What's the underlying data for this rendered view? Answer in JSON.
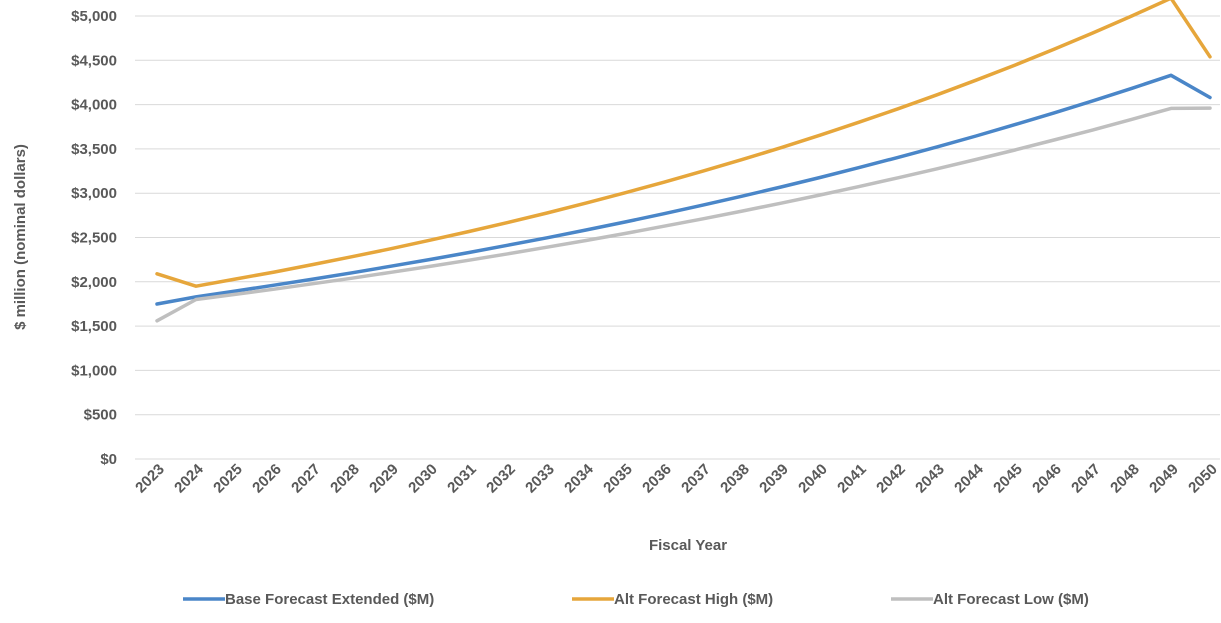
{
  "chart_data": {
    "type": "line",
    "title": "",
    "xlabel": "Fiscal Year",
    "ylabel": "$ million (nominal dollars)",
    "ylim": [
      0,
      5000
    ],
    "yticks": [
      0,
      500,
      1000,
      1500,
      2000,
      2500,
      3000,
      3500,
      4000,
      4500,
      5000
    ],
    "ytick_labels": [
      "$0",
      "$500",
      "$1,000",
      "$1,500",
      "$2,000",
      "$2,500",
      "$3,000",
      "$3,500",
      "$4,000",
      "$4,500",
      "$5,000"
    ],
    "grid": true,
    "legend_position": "bottom",
    "x": [
      "2023",
      "2024",
      "2025",
      "2026",
      "2027",
      "2028",
      "2029",
      "2030",
      "2031",
      "2032",
      "2033",
      "2034",
      "2035",
      "2036",
      "2037",
      "2038",
      "2039",
      "2040",
      "2041",
      "2042",
      "2043",
      "2044",
      "2045",
      "2046",
      "2047",
      "2048",
      "2049",
      "2050"
    ],
    "series": [
      {
        "name": "Base Forecast Extended ($M)",
        "color": "#4a86c8",
        "values": [
          1750,
          1830,
          1895,
          1962,
          2031,
          2102,
          2176,
          2252,
          2331,
          2413,
          2497,
          2585,
          2675,
          2769,
          2866,
          2966,
          3070,
          3177,
          3289,
          3404,
          3523,
          3646,
          3774,
          3906,
          4043,
          4184,
          4331,
          4080
        ]
      },
      {
        "name": "Alt Forecast High ($M)",
        "color": "#e6a63b",
        "values": [
          2090,
          1950,
          2030,
          2110,
          2195,
          2283,
          2374,
          2469,
          2568,
          2670,
          2777,
          2888,
          3004,
          3124,
          3249,
          3379,
          3514,
          3655,
          3801,
          3953,
          4111,
          4275,
          4446,
          4624,
          4809,
          5001,
          5201,
          4540
        ]
      },
      {
        "name": "Alt Forecast Low ($M)",
        "color": "#bfbfbf",
        "values": [
          1560,
          1800,
          1858,
          1917,
          1978,
          2041,
          2107,
          2174,
          2244,
          2316,
          2390,
          2466,
          2545,
          2627,
          2711,
          2798,
          2887,
          2980,
          3075,
          3174,
          3275,
          3380,
          3488,
          3600,
          3715,
          3834,
          3957,
          3960
        ]
      }
    ]
  }
}
